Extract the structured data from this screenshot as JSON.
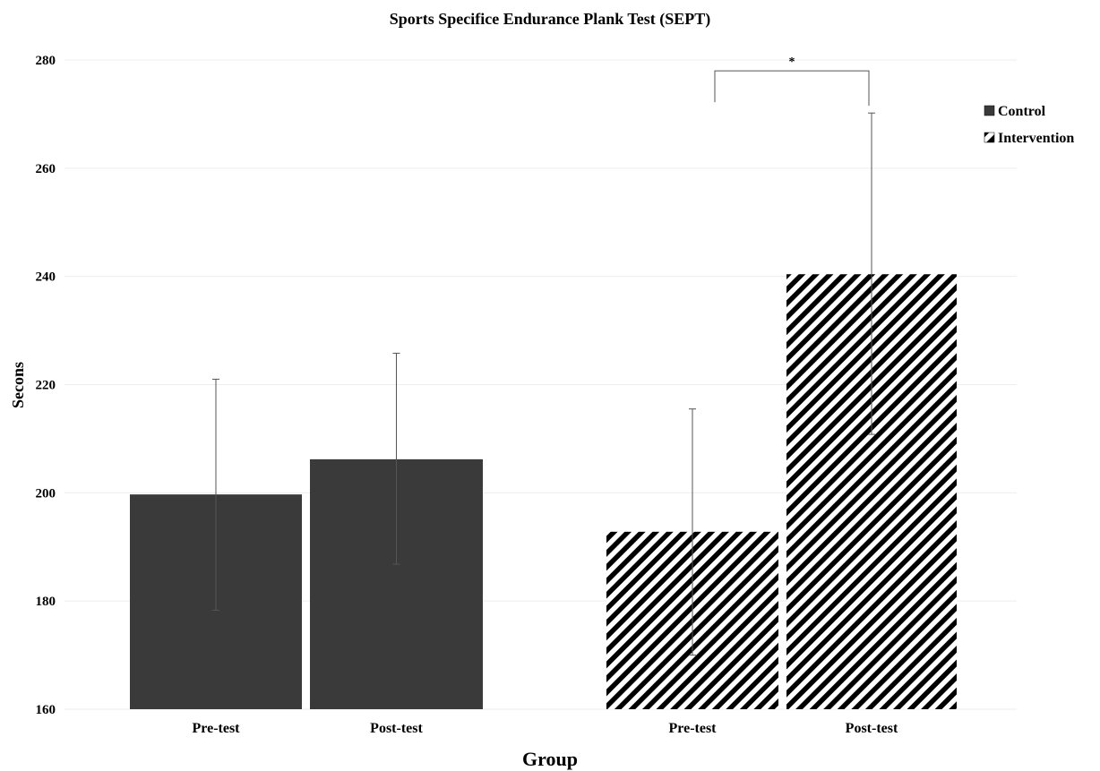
{
  "chart_data": {
    "type": "bar",
    "title": "Sports Specifice Endurance Plank Test (SEPT)",
    "xlabel": "Group",
    "ylabel": "Secons",
    "ylim": [
      160,
      280
    ],
    "yticks": [
      160,
      180,
      200,
      220,
      240,
      260,
      280
    ],
    "grid": true,
    "legend_position": "right",
    "groups": [
      {
        "bars": [
          {
            "category": "Pre-test",
            "series": "Control",
            "value": 199.7,
            "error_low": 178.3,
            "error_high": 221.0
          },
          {
            "category": "Post-test",
            "series": "Control",
            "value": 206.2,
            "error_low": 186.8,
            "error_high": 225.8
          }
        ]
      },
      {
        "bars": [
          {
            "category": "Pre-test",
            "series": "Intervention",
            "value": 192.8,
            "error_low": 170.0,
            "error_high": 215.5
          },
          {
            "category": "Post-test",
            "series": "Intervention",
            "value": 240.4,
            "error_low": 210.8,
            "error_high": 270.2
          }
        ]
      }
    ],
    "series": [
      {
        "name": "Control",
        "color": "#3a3a3a",
        "pattern": "solid"
      },
      {
        "name": "Intervention",
        "color": "#000000",
        "pattern": "diagonal-stripes"
      }
    ],
    "annotations": [
      {
        "text": "*",
        "between": [
          "Intervention Pre-test",
          "Intervention Post-test"
        ],
        "level": 278.0
      }
    ]
  }
}
